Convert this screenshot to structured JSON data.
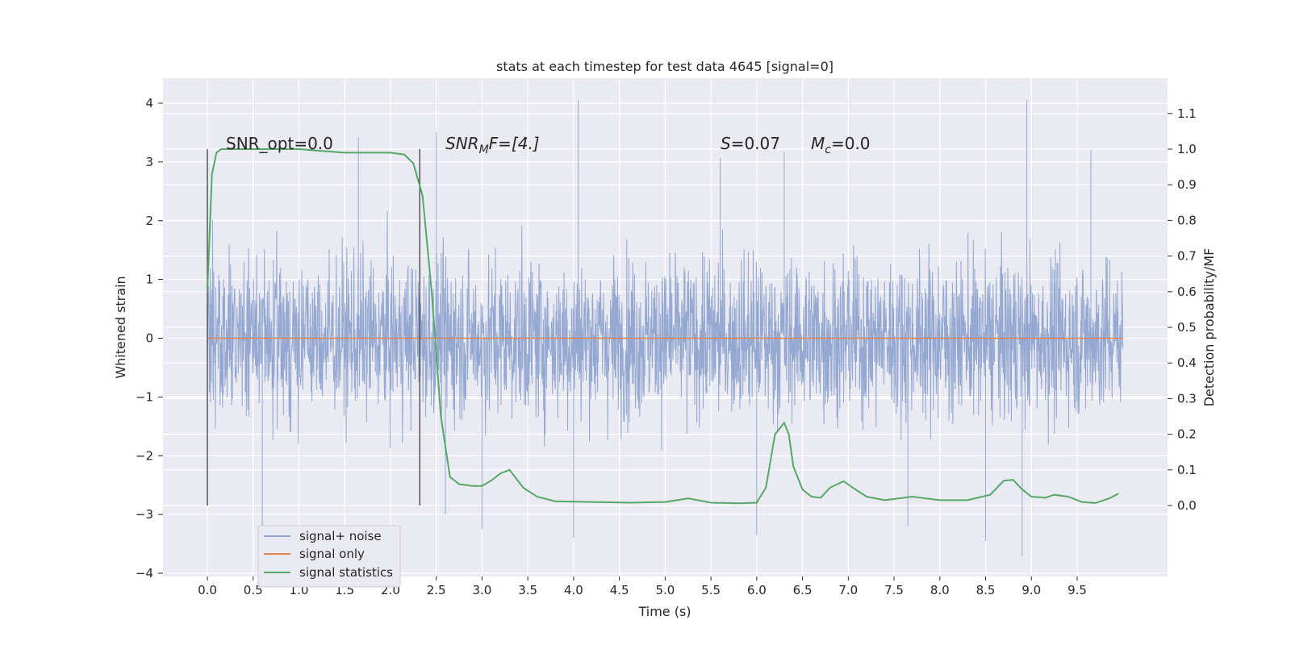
{
  "chart_data": {
    "type": "line",
    "title": "stats at each timestep for test data 4645 [signal=0]",
    "xlabel": "Time (s)",
    "ylabel_left": "Whitened strain",
    "ylabel_right": "Detection probability/MF",
    "xlim": [
      -0.5,
      10.5
    ],
    "ylim_left": [
      -4.1,
      4.4
    ],
    "ylim_right": [
      -0.2,
      1.2
    ],
    "x_ticks": [
      "0.0",
      "0.5",
      "1.0",
      "1.5",
      "2.0",
      "2.5",
      "3.0",
      "3.5",
      "4.0",
      "4.5",
      "5.0",
      "5.5",
      "6.0",
      "6.5",
      "7.0",
      "7.5",
      "8.0",
      "8.5",
      "9.0",
      "9.5"
    ],
    "y_left_ticks": [
      "4",
      "3",
      "2",
      "1",
      "0",
      "−1",
      "−2",
      "−3",
      "−4"
    ],
    "y_right_ticks": [
      "1.1",
      "1.0",
      "0.9",
      "0.8",
      "0.7",
      "0.6",
      "0.5",
      "0.4",
      "0.3",
      "0.2",
      "0.1",
      "0.0"
    ],
    "annotations": {
      "snr_opt": "SNR_opt=0.0",
      "snr_mf_base": "SNR",
      "snr_mf_sub": "M",
      "snr_mf_tail": "F=[4.]",
      "s_stat_var": "S",
      "s_stat_val": "=0.07",
      "mc_var": "M",
      "mc_sub": "c",
      "mc_val": "=0.0"
    },
    "vertical_lines_x": [
      0.0,
      2.32
    ],
    "series": [
      {
        "name": "signal+ noise",
        "axis": "left",
        "color": "#8fa4cf",
        "x_range": [
          0.0,
          10.0
        ],
        "envelope": {
          "typical": 1.4,
          "peak_max": 4.05,
          "trough_min": -3.7
        },
        "spikes": [
          [
            0.6,
            -3.25
          ],
          [
            1.65,
            3.42
          ],
          [
            2.5,
            3.5
          ],
          [
            2.6,
            -3.0
          ],
          [
            3.0,
            -3.25
          ],
          [
            4.05,
            4.05
          ],
          [
            4.0,
            -3.4
          ],
          [
            5.6,
            3.07
          ],
          [
            6.0,
            -3.35
          ],
          [
            6.3,
            3.15
          ],
          [
            7.65,
            -3.2
          ],
          [
            8.5,
            -3.45
          ],
          [
            8.95,
            4.05
          ],
          [
            8.9,
            -3.7
          ],
          [
            9.65,
            3.2
          ]
        ]
      },
      {
        "name": "signal only",
        "axis": "left",
        "color": "#dd8452",
        "x": [
          0.0,
          10.0
        ],
        "y": [
          0.0,
          0.0
        ]
      },
      {
        "name": "signal statistics",
        "axis": "right",
        "color": "#55a868",
        "x": [
          0.0,
          0.05,
          0.1,
          0.15,
          0.25,
          0.5,
          1.0,
          1.5,
          1.75,
          2.0,
          2.15,
          2.25,
          2.35,
          2.45,
          2.55,
          2.65,
          2.75,
          2.9,
          3.0,
          3.1,
          3.2,
          3.3,
          3.45,
          3.6,
          3.8,
          4.2,
          4.6,
          5.0,
          5.25,
          5.5,
          5.8,
          6.0,
          6.1,
          6.2,
          6.3,
          6.35,
          6.4,
          6.5,
          6.6,
          6.7,
          6.8,
          6.95,
          7.05,
          7.2,
          7.4,
          7.7,
          8.0,
          8.3,
          8.55,
          8.7,
          8.8,
          8.9,
          9.0,
          9.15,
          9.25,
          9.4,
          9.55,
          9.7,
          9.85,
          9.95
        ],
        "y": [
          0.6,
          0.93,
          0.99,
          1.0,
          1.0,
          1.0,
          1.0,
          0.99,
          0.99,
          0.99,
          0.985,
          0.96,
          0.87,
          0.6,
          0.25,
          0.08,
          0.06,
          0.055,
          0.055,
          0.07,
          0.09,
          0.1,
          0.05,
          0.025,
          0.012,
          0.01,
          0.008,
          0.01,
          0.02,
          0.008,
          0.006,
          0.008,
          0.05,
          0.2,
          0.232,
          0.2,
          0.11,
          0.045,
          0.025,
          0.022,
          0.05,
          0.068,
          0.05,
          0.025,
          0.015,
          0.025,
          0.015,
          0.015,
          0.03,
          0.07,
          0.072,
          0.045,
          0.025,
          0.022,
          0.03,
          0.025,
          0.01,
          0.007,
          0.02,
          0.033
        ]
      }
    ],
    "legend": {
      "placement": "lower-left",
      "entries": [
        {
          "label": "signal+ noise",
          "color": "#8fa4cf"
        },
        {
          "label": "signal only",
          "color": "#dd8452"
        },
        {
          "label": "signal statistics",
          "color": "#55a868"
        }
      ]
    },
    "grid": true,
    "background": "#eaeaf2"
  }
}
